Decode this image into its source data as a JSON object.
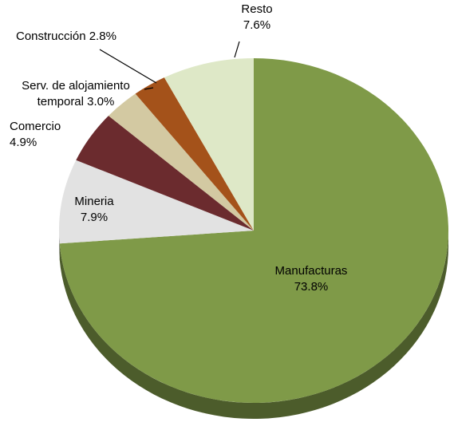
{
  "chart_data": {
    "type": "pie",
    "categories": [
      "Manufacturas",
      "Mineria",
      "Comercio",
      "Serv. de alojamiento temporal",
      "Construcción",
      "Resto"
    ],
    "values": [
      73.8,
      7.9,
      4.9,
      3.0,
      2.8,
      7.6
    ],
    "value_labels": [
      "73.8%",
      "7.9%",
      "4.9%",
      "3.0%",
      "2.8%",
      "7.6%"
    ],
    "colors": [
      "#7f9a48",
      "#e2e2e2",
      "#6b2b2e",
      "#d3c9a2",
      "#a4521a",
      "#dee8c7"
    ]
  }
}
